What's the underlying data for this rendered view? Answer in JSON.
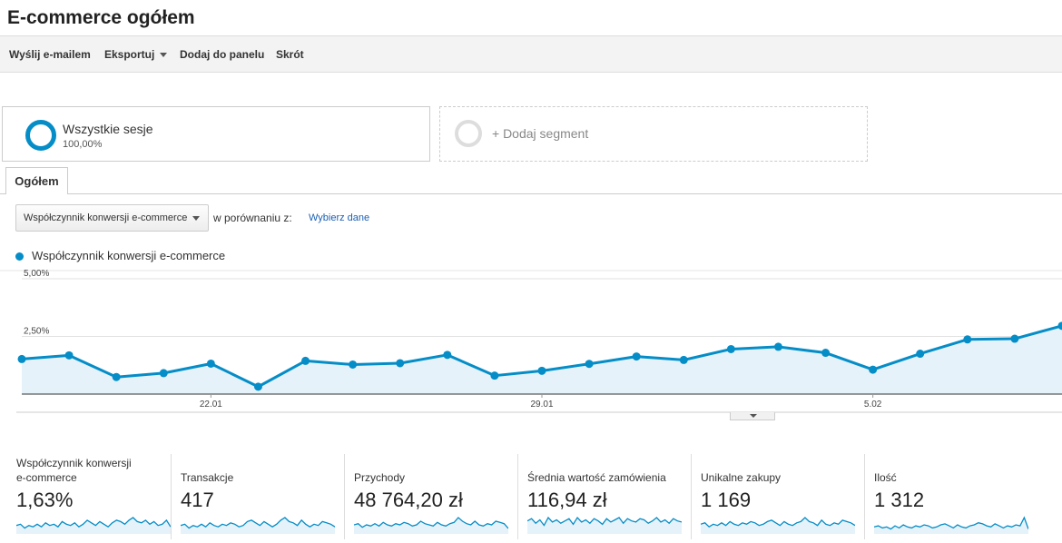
{
  "header": {
    "title": "E-commerce ogółem"
  },
  "toolbar": {
    "email": "Wyślij e-mailem",
    "export": "Eksportuj",
    "add_to_dashboard": "Dodaj do panelu",
    "shortcut": "Skrót"
  },
  "segments": {
    "all_sessions_name": "Wszystkie sesje",
    "all_sessions_pct": "100,00%",
    "add_segment": "+ Dodaj segment"
  },
  "tabs": {
    "overview": "Ogółem"
  },
  "controls": {
    "metric_selected": "Współczynnik konwersji e-commerce",
    "compare_label": "w porównaniu z:",
    "choose_data": "Wybierz dane"
  },
  "colors": {
    "series": "#058dc7",
    "fill": "#e6f2f9",
    "link": "#1a5fb4"
  },
  "chart_data": {
    "type": "area",
    "legend": [
      "Współczynnik konwersji e-commerce"
    ],
    "ytick_labels": [
      "2,50%",
      "5,00%"
    ],
    "yticks": [
      2.5,
      5.0
    ],
    "ylim": [
      0,
      5.0
    ],
    "xtick_labels": [
      "22.01",
      "29.01",
      "5.02"
    ],
    "xtick_index": [
      4,
      11,
      18
    ],
    "series": [
      {
        "name": "Współczynnik konwersji e-commerce",
        "values": [
          1.52,
          1.68,
          0.74,
          0.91,
          1.32,
          0.32,
          1.44,
          1.28,
          1.34,
          1.7,
          0.8,
          1.01,
          1.31,
          1.63,
          1.48,
          1.95,
          2.05,
          1.79,
          1.06,
          1.75,
          2.37,
          2.4,
          2.96
        ]
      }
    ]
  },
  "scorecards": [
    {
      "label": "Współczynnik konwersji\ne-commerce",
      "value": "1,63%",
      "spark": [
        5,
        6,
        3,
        5,
        4,
        6,
        4,
        7,
        5,
        6,
        4,
        8,
        6,
        5,
        7,
        4,
        6,
        9,
        7,
        5,
        8,
        6,
        4,
        7,
        9,
        8,
        6,
        9,
        11,
        8,
        7,
        9,
        6,
        8,
        5,
        6,
        9,
        4
      ]
    },
    {
      "label": "Transakcje",
      "value": "417",
      "spark": [
        5,
        6,
        3,
        5,
        4,
        6,
        4,
        7,
        5,
        4,
        6,
        5,
        7,
        6,
        4,
        5,
        8,
        9,
        7,
        5,
        8,
        6,
        4,
        6,
        9,
        11,
        8,
        7,
        5,
        9,
        6,
        4,
        6,
        5,
        8,
        7,
        6,
        4
      ]
    },
    {
      "label": "Przychody",
      "value": "48 764,20 zł",
      "spark": [
        6,
        7,
        4,
        6,
        5,
        7,
        5,
        8,
        6,
        5,
        7,
        6,
        8,
        7,
        5,
        6,
        9,
        7,
        6,
        5,
        8,
        6,
        5,
        7,
        8,
        12,
        9,
        7,
        6,
        9,
        6,
        5,
        7,
        6,
        9,
        8,
        7,
        3
      ]
    },
    {
      "label": "Średnia wartość zamówienia",
      "value": "116,94 zł",
      "spark": [
        10,
        12,
        8,
        11,
        6,
        13,
        9,
        11,
        8,
        10,
        12,
        7,
        13,
        9,
        11,
        8,
        12,
        10,
        7,
        12,
        9,
        11,
        13,
        8,
        12,
        10,
        9,
        12,
        11,
        8,
        10,
        13,
        9,
        11,
        8,
        12,
        10,
        9
      ]
    },
    {
      "label": "Unikalne zakupy",
      "value": "1 169",
      "spark": [
        6,
        7,
        4,
        6,
        5,
        7,
        5,
        8,
        6,
        5,
        7,
        6,
        8,
        7,
        5,
        6,
        8,
        9,
        7,
        5,
        8,
        6,
        5,
        7,
        8,
        11,
        8,
        7,
        5,
        9,
        6,
        5,
        7,
        6,
        9,
        8,
        7,
        5
      ]
    },
    {
      "label": "Ilość",
      "value": "1 312",
      "spark": [
        5,
        6,
        4,
        5,
        3,
        6,
        4,
        7,
        5,
        4,
        6,
        5,
        7,
        6,
        4,
        5,
        7,
        8,
        6,
        4,
        7,
        5,
        4,
        6,
        7,
        9,
        8,
        6,
        5,
        8,
        6,
        4,
        6,
        5,
        7,
        6,
        14,
        3
      ]
    }
  ]
}
